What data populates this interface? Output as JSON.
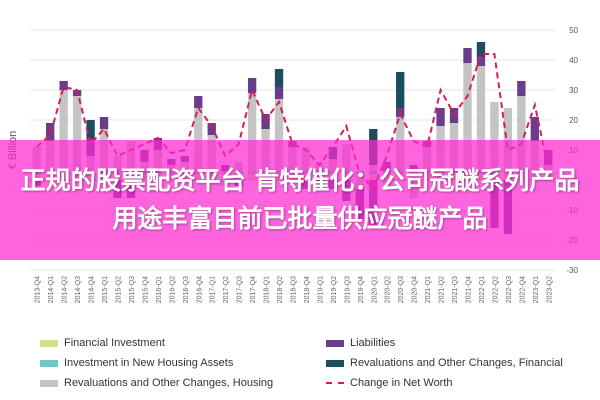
{
  "chart_data": {
    "type": "bar",
    "ylabel": "€ Billion",
    "ylim": [
      -30,
      50
    ],
    "yticks": [
      -30,
      -20,
      -10,
      0,
      10,
      20,
      30,
      40,
      50
    ],
    "grid": true,
    "legend_position": "bottom",
    "categories": [
      "2013-Q4",
      "2014-Q1",
      "2014-Q2",
      "2014-Q3",
      "2014-Q4",
      "2015-Q1",
      "2015-Q2",
      "2015-Q3",
      "2015-Q4",
      "2016-Q1",
      "2016-Q2",
      "2016-Q3",
      "2016-Q4",
      "2017-Q1",
      "2017-Q2",
      "2017-Q3",
      "2017-Q4",
      "2018-Q1",
      "2018-Q2",
      "2018-Q3",
      "2018-Q4",
      "2019-Q1",
      "2019-Q2",
      "2019-Q3",
      "2019-Q4",
      "2020-Q1",
      "2020-Q2",
      "2020-Q3",
      "2020-Q4",
      "2021-Q1",
      "2021-Q2",
      "2021-Q3",
      "2021-Q4",
      "2022-Q1",
      "2022-Q2",
      "2022-Q3",
      "2022-Q4",
      "2023-Q1",
      "2023-Q2"
    ],
    "series": [
      {
        "name": "Financial Investment",
        "type": "bar",
        "color": "#d4e08a",
        "values": [
          2,
          2,
          3,
          2,
          2,
          2,
          2,
          2,
          2,
          2,
          2,
          2,
          2,
          2,
          2,
          2,
          2,
          2,
          2,
          2,
          2,
          2,
          2,
          2,
          2,
          2,
          2,
          2,
          2,
          2,
          2,
          2,
          2,
          2,
          2,
          2,
          2,
          2,
          2
        ]
      },
      {
        "name": "Investment in New Housing Assets",
        "type": "bar",
        "color": "#6ec9c6",
        "values": [
          1,
          1,
          1,
          1,
          1,
          1,
          1,
          1,
          1,
          1,
          1,
          1,
          1,
          1,
          1,
          1,
          1,
          1,
          1,
          1,
          1,
          1,
          1,
          1,
          1,
          1,
          1,
          1,
          1,
          1,
          1,
          1,
          1,
          1,
          1,
          1,
          1,
          1,
          1
        ]
      },
      {
        "name": "Revaluations and Other Changes, Housing",
        "type": "bar",
        "color": "#c4c4c4",
        "values": [
          8,
          10,
          26,
          25,
          5,
          14,
          5,
          10,
          3,
          7,
          2,
          3,
          21,
          12,
          -2,
          3,
          26,
          14,
          24,
          8,
          8,
          3,
          4,
          9,
          -3,
          2,
          -2,
          18,
          -6,
          8,
          15,
          16,
          36,
          35,
          23,
          21,
          25,
          10,
          2
        ]
      },
      {
        "name": "Liabilities",
        "type": "bar",
        "color": "#6a3d8a",
        "values": [
          -2,
          6,
          3,
          2,
          6,
          4,
          -6,
          -6,
          4,
          4,
          2,
          2,
          4,
          4,
          2,
          -2,
          5,
          5,
          4,
          2,
          -3,
          -2,
          -3,
          -7,
          -10,
          -15,
          3,
          3,
          2,
          2,
          6,
          5,
          5,
          3,
          -16,
          -18,
          5,
          8,
          5
        ]
      },
      {
        "name": "Revaluations and Other Changes, Financial",
        "type": "bar",
        "color": "#1b4f5e",
        "values": [
          0,
          0,
          0,
          0,
          6,
          0,
          0,
          0,
          0,
          0,
          0,
          0,
          0,
          0,
          0,
          0,
          0,
          0,
          6,
          0,
          0,
          0,
          4,
          0,
          0,
          12,
          0,
          12,
          0,
          0,
          0,
          0,
          0,
          5,
          0,
          0,
          0,
          0,
          0
        ]
      },
      {
        "name": "Change in Net Worth",
        "type": "line",
        "color": "#d81b60",
        "values": [
          11,
          15,
          31,
          30,
          12,
          17,
          8,
          10,
          12,
          14,
          9,
          10,
          24,
          18,
          8,
          12,
          30,
          20,
          26,
          12,
          10,
          5,
          11,
          18,
          2,
          -3,
          8,
          22,
          13,
          11,
          30,
          22,
          28,
          42,
          42,
          10,
          12,
          25,
          4
        ]
      }
    ]
  },
  "banner": {
    "text": "正规的股票配资平台 肯特催化：公司冠醚系列产品用途丰富目前已批量供应冠醚产品"
  }
}
